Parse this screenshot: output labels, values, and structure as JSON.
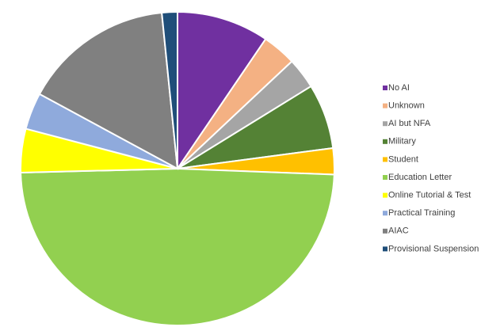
{
  "chart_data": {
    "type": "pie",
    "categories": [
      "No AI",
      "Unknown",
      "AI but NFA",
      "Military",
      "Student",
      "Education Letter",
      "Online Tutorial & Test",
      "Practical Training",
      "AIAC",
      "Provisional Suspension"
    ],
    "values": [
      9.5,
      3.5,
      3.2,
      6.7,
      2.7,
      49,
      4.5,
      3.8,
      15.5,
      1.6
    ],
    "colors": [
      "#7030a0",
      "#f4b183",
      "#a5a5a5",
      "#548235",
      "#ffc000",
      "#92d050",
      "#ffff00",
      "#8faadc",
      "#808080",
      "#1f4e79"
    ],
    "legend": "right"
  }
}
